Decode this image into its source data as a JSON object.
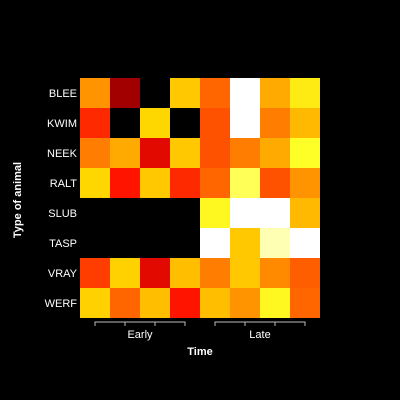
{
  "chart_data": {
    "type": "heatmap",
    "title": "",
    "xlabel": "Time",
    "ylabel": "Type of animal",
    "rows": [
      "BLEE",
      "KWIM",
      "NEEK",
      "RALT",
      "SLUB",
      "TASP",
      "VRAY",
      "WERF"
    ],
    "column_groups": [
      {
        "label": "Early",
        "columns": 4
      },
      {
        "label": "Late",
        "columns": 4
      }
    ],
    "value_range": [
      0,
      100
    ],
    "missing_color": "#000000",
    "colormap": "heat",
    "values": [
      [
        60,
        10,
        null,
        75,
        50,
        100,
        65,
        85
      ],
      [
        35,
        null,
        80,
        null,
        45,
        100,
        55,
        70
      ],
      [
        55,
        65,
        25,
        75,
        45,
        55,
        65,
        90
      ],
      [
        80,
        30,
        75,
        35,
        50,
        92,
        45,
        60
      ],
      [
        null,
        null,
        null,
        null,
        88,
        100,
        100,
        70
      ],
      [
        null,
        null,
        null,
        null,
        100,
        75,
        96,
        100
      ],
      [
        40,
        78,
        25,
        72,
        55,
        75,
        58,
        48
      ],
      [
        78,
        50,
        72,
        30,
        72,
        60,
        88,
        50
      ]
    ]
  }
}
